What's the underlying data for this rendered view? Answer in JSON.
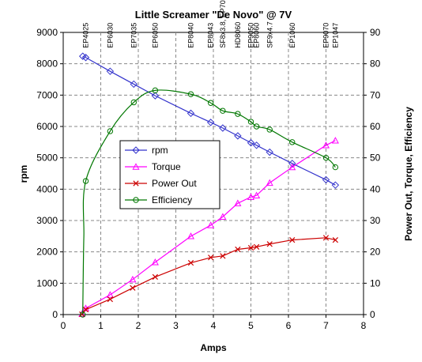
{
  "chart_data": {
    "type": "line",
    "title": "Little Screamer \"De Novo\" @ 7V",
    "xlabel": "Amps",
    "ylabel_left": "rpm",
    "ylabel_right": "Power Out, Torque, Efficiency",
    "xlim": [
      0,
      8
    ],
    "ylim_left": [
      0,
      9000
    ],
    "ylim_right": [
      0,
      90
    ],
    "x_ticks": [
      "0",
      "1",
      "2",
      "3",
      "4",
      "5",
      "6",
      "7",
      "8"
    ],
    "y_left_ticks": [
      "0",
      "1000",
      "2000",
      "3000",
      "4000",
      "5000",
      "6000",
      "7000",
      "8000",
      "9000"
    ],
    "y_right_ticks": [
      "0",
      "10",
      "20",
      "30",
      "40",
      "50",
      "60",
      "70",
      "80",
      "90"
    ],
    "grid": true,
    "legend_position": "middle-left",
    "series": [
      {
        "name": "rpm",
        "axis": "left",
        "color": "#3333cc",
        "marker": "diamond",
        "points": [
          [
            0.52,
            8240
          ],
          [
            0.6,
            8200
          ],
          [
            1.25,
            7760
          ],
          [
            1.88,
            7350
          ],
          [
            2.45,
            6980
          ],
          [
            3.4,
            6420
          ],
          [
            3.93,
            6130
          ],
          [
            4.25,
            5950
          ],
          [
            4.65,
            5700
          ],
          [
            5.0,
            5480
          ],
          [
            5.15,
            5400
          ],
          [
            5.5,
            5180
          ],
          [
            6.1,
            4820
          ],
          [
            7.0,
            4300
          ],
          [
            7.25,
            4130
          ]
        ]
      },
      {
        "name": "Torque",
        "axis": "right",
        "color": "#ff00ff",
        "marker": "triangle",
        "points": [
          [
            0.5,
            0.2
          ],
          [
            0.6,
            2
          ],
          [
            1.25,
            6.3
          ],
          [
            1.85,
            11.2
          ],
          [
            2.45,
            16.7
          ],
          [
            3.4,
            25
          ],
          [
            3.93,
            28.5
          ],
          [
            4.25,
            31.2
          ],
          [
            4.65,
            35.5
          ],
          [
            5.0,
            37.5
          ],
          [
            5.15,
            38
          ],
          [
            5.5,
            42
          ],
          [
            6.1,
            47
          ],
          [
            7.0,
            54
          ],
          [
            7.25,
            55.5
          ]
        ]
      },
      {
        "name": "Power Out",
        "axis": "right",
        "color": "#cc0000",
        "marker": "x",
        "points": [
          [
            0.5,
            0.1
          ],
          [
            0.6,
            1.6
          ],
          [
            1.25,
            4.9
          ],
          [
            1.85,
            8.5
          ],
          [
            2.45,
            12
          ],
          [
            3.4,
            16.5
          ],
          [
            3.93,
            18.2
          ],
          [
            4.25,
            18.7
          ],
          [
            4.65,
            20.8
          ],
          [
            5.0,
            21.3
          ],
          [
            5.15,
            21.6
          ],
          [
            5.5,
            22.5
          ],
          [
            6.1,
            23.8
          ],
          [
            7.0,
            24.5
          ],
          [
            7.25,
            23.8
          ]
        ]
      },
      {
        "name": "Efficiency",
        "axis": "right",
        "color": "#007700",
        "marker": "circle",
        "points": [
          [
            0.52,
            0
          ],
          [
            0.53,
            10
          ],
          [
            0.55,
            25
          ],
          [
            0.6,
            42.6
          ],
          [
            1.25,
            58.5
          ],
          [
            1.88,
            67.7
          ],
          [
            2.45,
            71.5
          ],
          [
            3.4,
            70.3
          ],
          [
            3.93,
            67.5
          ],
          [
            4.25,
            65
          ],
          [
            4.65,
            64
          ],
          [
            5.0,
            61.5
          ],
          [
            5.15,
            60
          ],
          [
            5.5,
            59
          ],
          [
            6.1,
            55
          ],
          [
            7.0,
            50
          ],
          [
            7.25,
            47
          ]
        ]
      }
    ],
    "annotations": [
      {
        "text": "EP4025",
        "x": 0.6
      },
      {
        "text": "EP6030",
        "x": 1.25
      },
      {
        "text": "EP7035",
        "x": 1.88
      },
      {
        "text": "EP6050",
        "x": 2.45
      },
      {
        "text": "EP8040",
        "x": 3.4
      },
      {
        "text": "EP8043",
        "x": 3.93
      },
      {
        "text": "SF8x3.8, EP7060",
        "x": 4.25
      },
      {
        "text": "HD8060",
        "x": 4.65
      },
      {
        "text": "EP9050",
        "x": 5.0
      },
      {
        "text": "EP8060",
        "x": 5.15
      },
      {
        "text": "SF9x4.7",
        "x": 5.5
      },
      {
        "text": "EP1060",
        "x": 6.1
      },
      {
        "text": "EP9070",
        "x": 7.0
      },
      {
        "text": "EP1047",
        "x": 7.25
      }
    ]
  }
}
